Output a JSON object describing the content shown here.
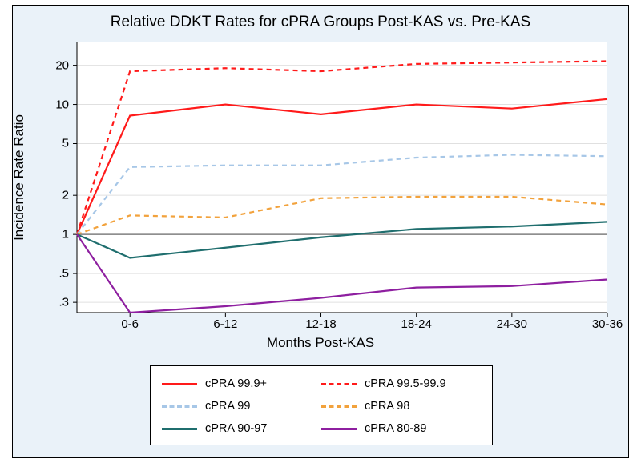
{
  "title": "Relative DDKT Rates for cPRA Groups Post-KAS vs. Pre-KAS",
  "xlabel": "Months Post-KAS",
  "ylabel": "Incidence Rate Ratio",
  "plot": {
    "background_color": "#ffffff",
    "panel_background": "#eaf2f9",
    "grid_color": "#e0e0e0",
    "ref_line_color": "#808080",
    "scale": "log",
    "ylim_log10": [
      -0.602,
      1.477
    ],
    "yticks": [
      0.3,
      0.5,
      1,
      2,
      5,
      10,
      20
    ],
    "ytick_labels": [
      ".3",
      ".5",
      "1",
      "2",
      "5",
      "10",
      "20"
    ],
    "x_categories": [
      "0-6",
      "6-12",
      "12-18",
      "18-24",
      "24-30",
      "30-36"
    ],
    "x_start_offset": 0.1,
    "line_width": 2.2,
    "dash_pattern": "6,5"
  },
  "series": [
    {
      "name": "cPRA 99.9+",
      "color": "#ff1a1a",
      "style": "solid",
      "values": [
        1,
        8.2,
        10.0,
        8.4,
        10.0,
        9.3,
        11.0
      ]
    },
    {
      "name": "cPRA 99.5-99.9",
      "color": "#ff1a1a",
      "style": "dashed",
      "values": [
        1,
        18.0,
        19.0,
        18.0,
        20.5,
        21.0,
        21.5
      ]
    },
    {
      "name": "cPRA 99",
      "color": "#a7c7e7",
      "style": "dashed",
      "values": [
        1,
        3.3,
        3.4,
        3.4,
        3.9,
        4.1,
        4.0
      ]
    },
    {
      "name": "cPRA 98",
      "color": "#f2a23c",
      "style": "dashed",
      "values": [
        1,
        1.4,
        1.35,
        1.9,
        1.95,
        1.95,
        1.7
      ]
    },
    {
      "name": "cPRA 90-97",
      "color": "#1f6e6e",
      "style": "solid",
      "values": [
        1,
        0.66,
        0.79,
        0.95,
        1.1,
        1.15,
        1.25
      ]
    },
    {
      "name": "cPRA 80-89",
      "color": "#8e1fa0",
      "style": "solid",
      "values": [
        1,
        0.25,
        0.28,
        0.325,
        0.39,
        0.4,
        0.45
      ]
    }
  ],
  "legend": {
    "border_color": "#000000",
    "background_color": "#ffffff",
    "items": [
      "cPRA 99.9+",
      "cPRA 99.5-99.9",
      "cPRA 99",
      "cPRA 98",
      "cPRA 90-97",
      "cPRA 80-89"
    ]
  }
}
